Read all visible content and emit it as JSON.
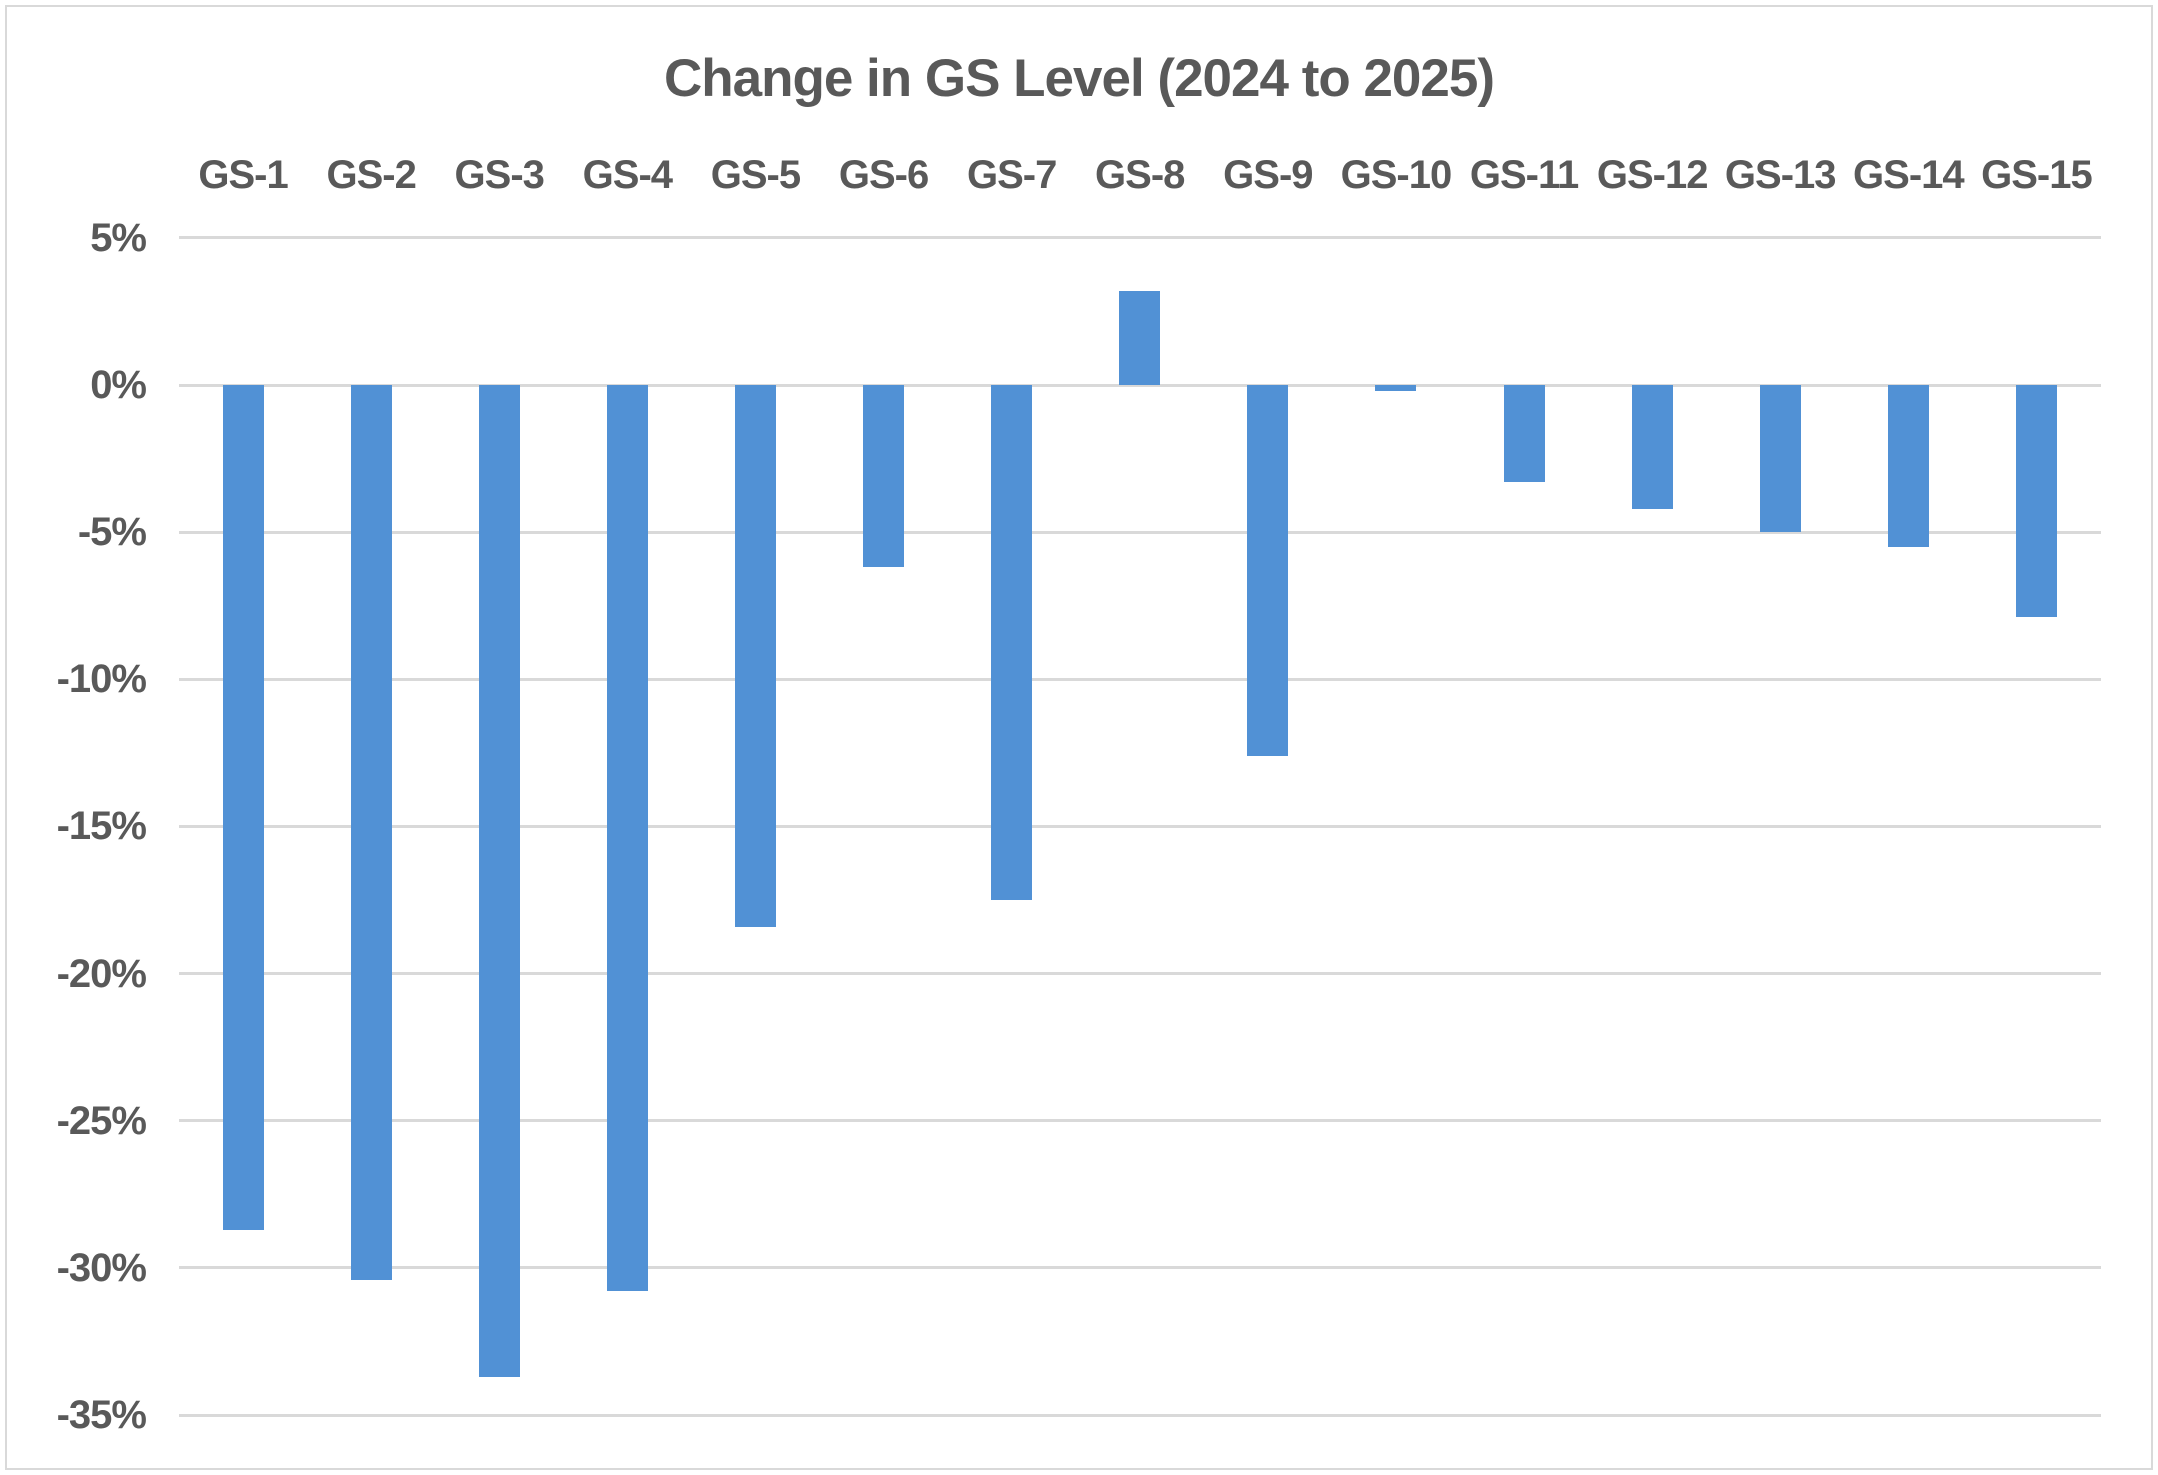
{
  "chart_data": {
    "type": "bar",
    "title": "Change in GS Level (2024 to 2025)",
    "categories": [
      "GS-1",
      "GS-2",
      "GS-3",
      "GS-4",
      "GS-5",
      "GS-6",
      "GS-7",
      "GS-8",
      "GS-9",
      "GS-10",
      "GS-11",
      "GS-12",
      "GS-13",
      "GS-14",
      "GS-15"
    ],
    "values": [
      -28.7,
      -30.4,
      -33.7,
      -30.8,
      -18.4,
      -6.2,
      -17.5,
      3.2,
      -12.6,
      -0.2,
      -3.3,
      -4.2,
      -5.0,
      -5.5,
      -7.9
    ],
    "unit": "%",
    "y_tick_labels": [
      "5%",
      "0%",
      "-5%",
      "-10%",
      "-15%",
      "-20%",
      "-25%",
      "-30%",
      "-35%"
    ],
    "y_tick_values": [
      5,
      0,
      -5,
      -10,
      -15,
      -20,
      -25,
      -30,
      -35
    ],
    "ylim": [
      -35,
      5
    ],
    "xlabel": "",
    "ylabel": "",
    "grid": true,
    "legend": "none",
    "category_labels_position": "top",
    "colors": {
      "bar": "#5191d5",
      "text": "#595959",
      "gridline": "#d9d9d9",
      "border": "#d9d9d9",
      "background": "#ffffff"
    }
  }
}
